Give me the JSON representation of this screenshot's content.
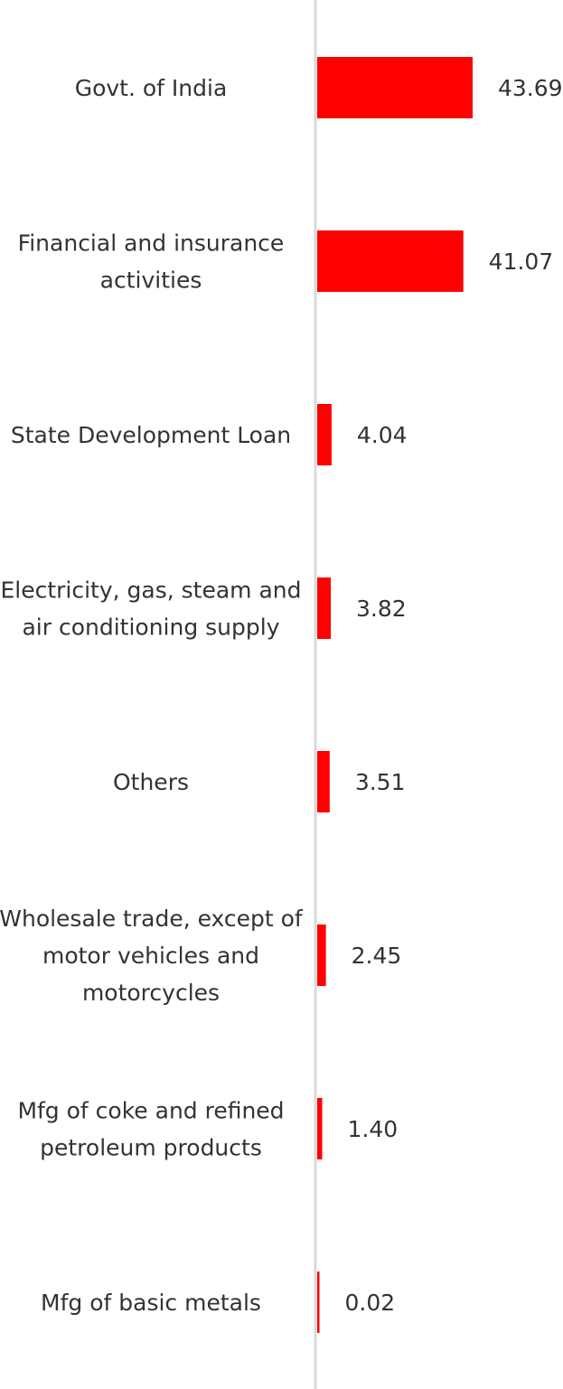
{
  "chart_data": {
    "type": "bar",
    "orientation": "horizontal",
    "categories": [
      [
        "Govt. of India"
      ],
      [
        "Financial and insurance",
        "activities"
      ],
      [
        "State Development Loan"
      ],
      [
        "Electricity, gas, steam and",
        "air conditioning supply"
      ],
      [
        "Others"
      ],
      [
        "Wholesale trade, except of",
        "motor vehicles and",
        "motorcycles"
      ],
      [
        "Mfg of coke and refined",
        "petroleum products"
      ],
      [
        "Mfg of basic metals"
      ]
    ],
    "values": [
      43.69,
      41.07,
      4.04,
      3.82,
      3.51,
      2.45,
      1.4,
      0.02
    ],
    "value_labels": [
      "43.69",
      "41.07",
      "4.04",
      "3.82",
      "3.51",
      "2.45",
      "1.40",
      "0.02"
    ],
    "bar_color": "#ff0000",
    "axis_color": "#d9d9d9",
    "grid": false,
    "legend": "none"
  }
}
